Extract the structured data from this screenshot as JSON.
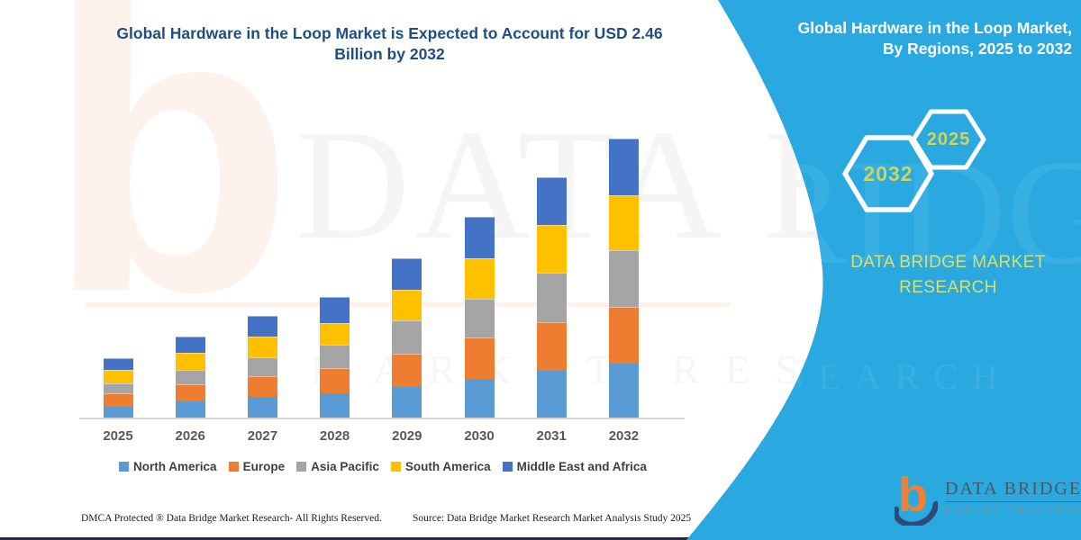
{
  "header": {
    "chart_title_line1": "Global Hardware in the Loop Market is Expected to Account for USD 2.46",
    "chart_title_line2": "Billion by 2032"
  },
  "chart_data": {
    "type": "bar",
    "stacked": true,
    "title": "Global Hardware in the Loop Market is Expected to Account for USD 2.46 Billion by 2032",
    "unit": "USD Billion",
    "categories": [
      "2025",
      "2026",
      "2027",
      "2028",
      "2029",
      "2030",
      "2031",
      "2032"
    ],
    "series": [
      {
        "name": "North America",
        "color": "#5b9bd5",
        "values": [
          0.1,
          0.15,
          0.19,
          0.22,
          0.28,
          0.35,
          0.42,
          0.48
        ]
      },
      {
        "name": "Europe",
        "color": "#ed7d31",
        "values": [
          0.12,
          0.15,
          0.18,
          0.22,
          0.29,
          0.36,
          0.43,
          0.5
        ]
      },
      {
        "name": "Asia Pacific",
        "color": "#a5a5a5",
        "values": [
          0.09,
          0.13,
          0.17,
          0.21,
          0.29,
          0.34,
          0.43,
          0.5
        ]
      },
      {
        "name": "South America",
        "color": "#ffc000",
        "values": [
          0.12,
          0.15,
          0.18,
          0.19,
          0.27,
          0.36,
          0.42,
          0.48
        ]
      },
      {
        "name": "Middle East and Africa",
        "color": "#4472c4",
        "values": [
          0.1,
          0.14,
          0.18,
          0.23,
          0.28,
          0.36,
          0.42,
          0.5
        ]
      }
    ],
    "totals": [
      0.53,
      0.72,
      0.9,
      1.07,
      1.41,
      1.77,
      2.12,
      2.46
    ],
    "legend_position": "bottom",
    "gridlines": false,
    "y_axis_visible": false
  },
  "sidebar": {
    "panel_color": "#29a9e0",
    "title_line1": "Global Hardware in the Loop Market,",
    "title_line2": "By Regions, 2025 to 2032",
    "hexagons": [
      {
        "label": "2032"
      },
      {
        "label": "2025"
      }
    ],
    "brand_line1": "DATA BRIDGE MARKET",
    "brand_line2": "RESEARCH"
  },
  "logo": {
    "name": "DATA BRIDGE",
    "tagline": "MARKET RESEARCH"
  },
  "footer": {
    "dmca": "DMCA Protected ® Data Bridge Market Research-  All Rights Reserved.",
    "source": "Source: Data Bridge Market Research  Market Analysis Study 2025"
  },
  "watermark": {
    "logo_letter": "b",
    "big_text": "DATA BRIDGE",
    "sub_text": "MARKET RESEARCH"
  }
}
